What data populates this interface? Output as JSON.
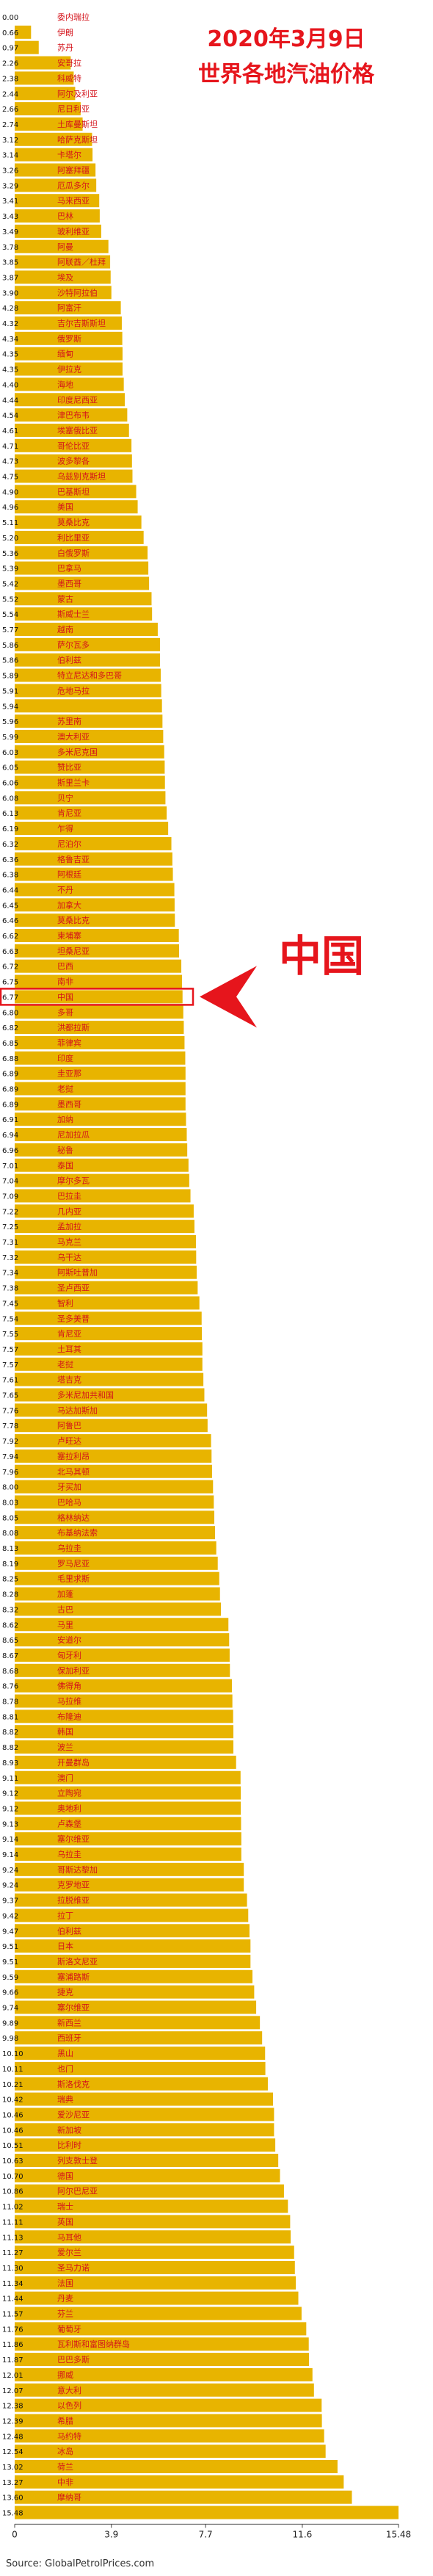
{
  "title_line1": "2020年3月9日",
  "title_line2": "世界各地汽油价格",
  "highlight_label": "中国",
  "source": "Source: GlobalPetrolPrices.com",
  "colors": {
    "bar": "#e8b400",
    "title": "#e6151c",
    "arrow": "#e6151c"
  },
  "chart_data": {
    "type": "bar",
    "orientation": "horizontal",
    "categories": [
      "委内瑞拉",
      "伊朗",
      "苏丹",
      "安哥拉",
      "科威特",
      "阿尔及利亚",
      "尼日利亚",
      "土库曼斯坦",
      "哈萨克斯坦",
      "卡塔尔",
      "阿塞拜疆",
      "厄瓜多尔",
      "马来西亚",
      "巴林",
      "玻利维亚",
      "阿曼",
      "阿联酋／杜拜",
      "埃及",
      "沙特阿拉伯",
      "阿富汗",
      "吉尔吉斯斯坦",
      "俄罗斯",
      "缅甸",
      "伊拉克",
      "海地",
      "印度尼西亚",
      "津巴布韦",
      "埃塞俄比亚",
      "哥伦比亚",
      "波多黎各",
      "乌兹别克斯坦",
      "巴基斯坦",
      "美国",
      "莫桑比克",
      "利比里亚",
      "白俄罗斯",
      "巴拿马",
      "墨西哥",
      "蒙古",
      "斯威士兰",
      "越南",
      "萨尔瓦多",
      "伯利兹",
      "特立尼达和多巴哥",
      "危地马拉",
      "",
      "苏里南",
      "澳大利亚",
      "多米尼克国",
      "赞比亚",
      "斯里兰卡",
      "贝宁",
      "肯尼亚",
      "乍得",
      "尼泊尔",
      "格鲁吉亚",
      "阿根廷",
      "不丹",
      "加拿大",
      "莫桑比克",
      "柬埔寨",
      "坦桑尼亚",
      "巴西",
      "南非",
      "中国",
      "多哥",
      "洪都拉斯",
      "菲律宾",
      "印度",
      "圭亚那",
      "老挝",
      "墨西哥",
      "加纳",
      "尼加拉瓜",
      "秘鲁",
      "泰国",
      "摩尔多瓦",
      "巴拉圭",
      "几内亚",
      "孟加拉",
      "马克兰",
      "乌干达",
      "阿斯吐普加",
      "圣卢西亚",
      "智利",
      "圣多美普",
      "肯尼亚",
      "土耳其",
      "老挝",
      "塔吉克",
      "多米尼加共和国",
      "马达加斯加",
      "阿鲁巴",
      "卢旺达",
      "塞拉利昂",
      "北马其顿",
      "牙买加",
      "巴哈马",
      "格林纳达",
      "布基纳法索",
      "乌拉圭",
      "罗马尼亚",
      "毛里求斯",
      "加蓬",
      "古巴",
      "马里",
      "安道尔",
      "匈牙利",
      "保加利亚",
      "佛得角",
      "马拉维",
      "布隆迪",
      "韩国",
      "波兰",
      "开曼群岛",
      "澳门",
      "立陶宛",
      "奥地利",
      "卢森堡",
      "塞尔维亚",
      "乌拉圭",
      "哥斯达黎加",
      "克罗地亚",
      "拉脱维亚",
      "拉丁",
      "伯利兹",
      "日本",
      "斯洛文尼亚",
      "塞浦路斯",
      "捷克",
      "塞尔维亚",
      "新西兰",
      "西班牙",
      "黑山",
      "也门",
      "斯洛伐克",
      "瑞典",
      "爱沙尼亚",
      "新加坡",
      "比利时",
      "列支敦士登",
      "德国",
      "阿尔巴尼亚",
      "瑞士",
      "英国",
      "马耳他",
      "爱尔兰",
      "圣马力诺",
      "法国",
      "丹麦",
      "芬兰",
      "葡萄牙",
      "瓦利斯和富图纳群岛",
      "巴巴多斯",
      "挪威",
      "意大利",
      "以色列",
      "希腊",
      "马约特",
      "冰岛",
      "荷兰",
      "中非",
      "摩纳哥",
      ""
    ],
    "values": [
      0.0,
      0.66,
      0.97,
      2.26,
      2.38,
      2.44,
      2.66,
      2.74,
      3.12,
      3.14,
      3.26,
      3.29,
      3.41,
      3.43,
      3.49,
      3.78,
      3.85,
      3.87,
      3.9,
      4.28,
      4.32,
      4.34,
      4.35,
      4.35,
      4.4,
      4.44,
      4.54,
      4.61,
      4.71,
      4.73,
      4.75,
      4.9,
      4.96,
      5.11,
      5.2,
      5.36,
      5.39,
      5.42,
      5.52,
      5.54,
      5.77,
      5.86,
      5.86,
      5.89,
      5.91,
      5.94,
      5.96,
      5.99,
      6.03,
      6.05,
      6.06,
      6.08,
      6.13,
      6.19,
      6.32,
      6.36,
      6.38,
      6.44,
      6.45,
      6.46,
      6.62,
      6.63,
      6.72,
      6.75,
      6.77,
      6.8,
      6.82,
      6.85,
      6.88,
      6.89,
      6.89,
      6.89,
      6.91,
      6.94,
      6.96,
      7.01,
      7.04,
      7.09,
      7.22,
      7.25,
      7.31,
      7.32,
      7.34,
      7.38,
      7.45,
      7.54,
      7.55,
      7.57,
      7.57,
      7.61,
      7.65,
      7.76,
      7.78,
      7.92,
      7.94,
      7.96,
      8.0,
      8.03,
      8.05,
      8.08,
      8.13,
      8.19,
      8.25,
      8.28,
      8.32,
      8.62,
      8.65,
      8.67,
      8.68,
      8.76,
      8.78,
      8.81,
      8.82,
      8.82,
      8.93,
      9.11,
      9.12,
      9.12,
      9.13,
      9.14,
      9.14,
      9.24,
      9.24,
      9.37,
      9.42,
      9.47,
      9.51,
      9.51,
      9.59,
      9.66,
      9.74,
      9.89,
      9.98,
      10.1,
      10.11,
      10.21,
      10.42,
      10.46,
      10.46,
      10.51,
      10.63,
      10.7,
      10.86,
      11.02,
      11.11,
      11.13,
      11.27,
      11.3,
      11.34,
      11.44,
      11.57,
      11.76,
      11.86,
      11.87,
      12.01,
      12.07,
      12.38,
      12.39,
      12.48,
      12.54,
      13.02,
      13.27,
      13.6,
      15.48
    ],
    "xlim": [
      0,
      15.48
    ],
    "xticks": [
      "0",
      "3.9",
      "7.7",
      "11.6",
      "15.48"
    ],
    "highlight_category": "中国",
    "grid": false,
    "legend": "none"
  }
}
